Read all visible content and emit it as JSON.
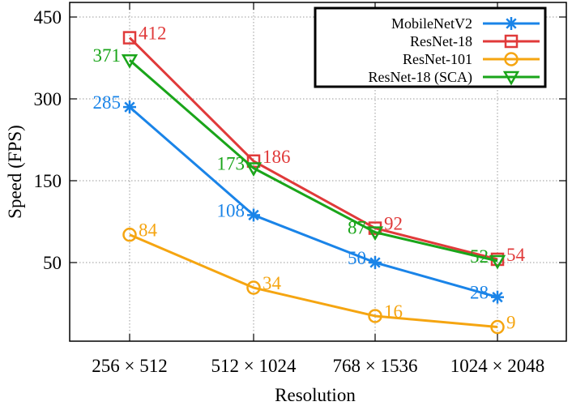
{
  "chart_data": {
    "type": "line",
    "xlabel": "Resolution",
    "ylabel": "Speed (FPS)",
    "categories": [
      "256 × 512",
      "512 × 1024",
      "768 × 1536",
      "1024 × 2048"
    ],
    "y_scale": "piecewise-linear: 0–50, 50–150, 150–300, 300–450 each spanning one grid band",
    "yticks": [
      {
        "value": 50,
        "label": "50"
      },
      {
        "value": 150,
        "label": "150"
      },
      {
        "value": 300,
        "label": "300"
      },
      {
        "value": 450,
        "label": "450"
      }
    ],
    "ylim": [
      0,
      450
    ],
    "grid": true,
    "legend_position": "top-right",
    "series": [
      {
        "name": "MobileNetV2",
        "color": "#1a84e8",
        "marker": "asterisk",
        "values": [
          285,
          108,
          50,
          28
        ],
        "labels": [
          "285",
          "108",
          "50",
          "28"
        ],
        "label_side": [
          "left",
          "left",
          "left",
          "left"
        ]
      },
      {
        "name": "ResNet-18",
        "color": "#e03a3a",
        "marker": "square",
        "values": [
          412,
          186,
          92,
          54
        ],
        "labels": [
          "412",
          "186",
          "92",
          "54"
        ],
        "label_side": [
          "right",
          "right",
          "right",
          "right"
        ]
      },
      {
        "name": "ResNet-101",
        "color": "#f5a511",
        "marker": "circle",
        "values": [
          84,
          34,
          16,
          9
        ],
        "labels": [
          "84",
          "34",
          "16",
          "9"
        ],
        "label_side": [
          "right",
          "right",
          "right",
          "right"
        ]
      },
      {
        "name": "ResNet-18 (SCA)",
        "color": "#1aa51a",
        "marker": "triangle-down",
        "values": [
          371,
          173,
          87,
          52
        ],
        "labels": [
          "371",
          "173",
          "87",
          "52"
        ],
        "label_side": [
          "left",
          "left",
          "left",
          "left"
        ]
      }
    ]
  }
}
